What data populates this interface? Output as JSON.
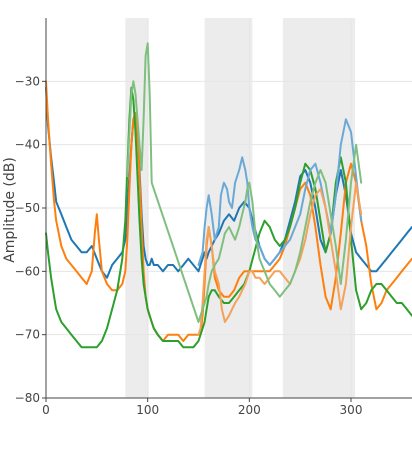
{
  "chart_data": {
    "type": "line",
    "title": "",
    "xlabel": "",
    "ylabel": "Amplitude (dB)",
    "xlim": [
      0,
      360
    ],
    "ylim": [
      -80,
      -20
    ],
    "xticks": [
      0,
      100,
      200,
      300
    ],
    "yticks": [
      -80,
      -70,
      -60,
      -50,
      -40,
      -30
    ],
    "grid": true,
    "legend": "none",
    "shaded_bands": [
      {
        "x0": 78,
        "x1": 101,
        "color": "#ececec"
      },
      {
        "x0": 156,
        "x1": 203,
        "color": "#ececec"
      },
      {
        "x0": 233,
        "x1": 304,
        "color": "#ececec"
      }
    ],
    "series": [
      {
        "color": "#1f77b4",
        "x": [
          0,
          2,
          5,
          8,
          10,
          15,
          20,
          25,
          30,
          35,
          40,
          45,
          50,
          55,
          60,
          65,
          70,
          75,
          78,
          80,
          82,
          84,
          86,
          88,
          90,
          92,
          94,
          96,
          98,
          100,
          102,
          104,
          106,
          110,
          115,
          120,
          125,
          130,
          135,
          140,
          145,
          150,
          152,
          154,
          156,
          158,
          160,
          163,
          166,
          170,
          175,
          180,
          185,
          190,
          195,
          200,
          205,
          210,
          215,
          220,
          225,
          230,
          235,
          240,
          245,
          250,
          255,
          260,
          265,
          270,
          275,
          280,
          285,
          290,
          295,
          300,
          305,
          310,
          315,
          320,
          325,
          330,
          335,
          340,
          345,
          350,
          355,
          360
        ],
        "y": [
          -31,
          -37,
          -42,
          -46,
          -49,
          -51,
          -53,
          -55,
          -56,
          -57,
          -57,
          -56,
          -58,
          -60,
          -61,
          -59,
          -58,
          -57,
          -55,
          -50,
          -45,
          -40,
          -36,
          -35,
          -38,
          -44,
          -51,
          -56,
          -58,
          -59,
          -59,
          -58,
          -59,
          -59,
          -60,
          -59,
          -59,
          -60,
          -59,
          -58,
          -59,
          -60,
          -59,
          -58,
          -57,
          -58,
          -57,
          -56,
          -55,
          -54,
          -52,
          -51,
          -52,
          -50,
          -49,
          -50,
          -53,
          -56,
          -58,
          -59,
          -58,
          -57,
          -55,
          -52,
          -49,
          -45,
          -44,
          -46,
          -50,
          -55,
          -57,
          -54,
          -48,
          -44,
          -48,
          -54,
          -57,
          -58,
          -59,
          -60,
          -60,
          -59,
          -58,
          -57,
          -56,
          -55,
          -54,
          -53
        ]
      },
      {
        "color": "#ff7f0e",
        "x": [
          0,
          2,
          5,
          8,
          10,
          15,
          20,
          25,
          30,
          35,
          40,
          45,
          48,
          50,
          52,
          55,
          60,
          65,
          70,
          75,
          78,
          80,
          82,
          84,
          86,
          88,
          90,
          92,
          94,
          96,
          98,
          100,
          102,
          104,
          106,
          110,
          115,
          120,
          125,
          130,
          135,
          140,
          145,
          150,
          152,
          154,
          156,
          158,
          160,
          163,
          166,
          170,
          175,
          180,
          185,
          190,
          195,
          200,
          205,
          210,
          215,
          220,
          225,
          230,
          235,
          240,
          245,
          250,
          255,
          260,
          265,
          270,
          275,
          280,
          285,
          290,
          295,
          300,
          305,
          310,
          315,
          320,
          325,
          330,
          335,
          340,
          345,
          350,
          355,
          360
        ],
        "y": [
          -30,
          -36,
          -43,
          -49,
          -52,
          -56,
          -58,
          -59,
          -60,
          -61,
          -62,
          -60,
          -54,
          -51,
          -55,
          -60,
          -62,
          -63,
          -63,
          -62,
          -60,
          -55,
          -47,
          -40,
          -36,
          -35,
          -38,
          -45,
          -53,
          -60,
          -64,
          -66,
          -67,
          -68,
          -69,
          -70,
          -71,
          -70,
          -70,
          -70,
          -71,
          -70,
          -70,
          -70,
          -70,
          -67,
          -62,
          -56,
          -53,
          -56,
          -61,
          -63,
          -64,
          -64,
          -63,
          -61,
          -60,
          -60,
          -60,
          -60,
          -60,
          -60,
          -59,
          -58,
          -56,
          -53,
          -50,
          -47,
          -46,
          -48,
          -53,
          -59,
          -64,
          -66,
          -61,
          -54,
          -46,
          -43,
          -46,
          -52,
          -56,
          -62,
          -66,
          -65,
          -63,
          -62,
          -61,
          -60,
          -59,
          -58
        ]
      },
      {
        "color": "#2ca02c",
        "x": [
          0,
          2,
          5,
          8,
          10,
          15,
          20,
          25,
          30,
          35,
          40,
          45,
          50,
          55,
          60,
          65,
          70,
          75,
          78,
          80,
          82,
          84,
          86,
          88,
          90,
          92,
          94,
          96,
          98,
          100,
          102,
          104,
          106,
          110,
          115,
          120,
          125,
          130,
          135,
          140,
          145,
          150,
          152,
          154,
          156,
          158,
          160,
          163,
          166,
          170,
          175,
          180,
          185,
          190,
          195,
          200,
          205,
          210,
          215,
          220,
          225,
          230,
          235,
          240,
          245,
          250,
          255,
          260,
          265,
          270,
          275,
          280,
          285,
          290,
          295,
          300,
          305,
          310,
          315,
          320,
          325,
          330,
          335,
          340,
          345,
          350,
          355,
          360
        ],
        "y": [
          -54,
          -57,
          -61,
          -64,
          -66,
          -68,
          -69,
          -70,
          -71,
          -72,
          -72,
          -72,
          -72,
          -71,
          -69,
          -66,
          -63,
          -58,
          -52,
          -44,
          -36,
          -31,
          -33,
          -38,
          -45,
          -52,
          -58,
          -62,
          -64,
          -66,
          -67,
          -68,
          -69,
          -70,
          -71,
          -71,
          -71,
          -71,
          -72,
          -72,
          -72,
          -71,
          -70,
          -69,
          -68,
          -66,
          -64,
          -63,
          -63,
          -64,
          -65,
          -65,
          -64,
          -63,
          -62,
          -60,
          -57,
          -54,
          -52,
          -53,
          -55,
          -56,
          -55,
          -53,
          -50,
          -46,
          -43,
          -44,
          -47,
          -52,
          -57,
          -54,
          -46,
          -42,
          -46,
          -55,
          -63,
          -66,
          -65,
          -63,
          -62,
          -62,
          -63,
          -64,
          -65,
          -65,
          -66,
          -67
        ]
      },
      {
        "color": "#6aa9d6",
        "x": [
          150,
          152,
          154,
          156,
          158,
          160,
          163,
          166,
          170,
          172,
          175,
          178,
          180,
          183,
          186,
          190,
          193,
          196,
          198,
          200,
          203,
          206,
          210,
          215,
          220,
          225,
          230,
          235,
          240,
          245,
          250,
          255,
          260,
          265,
          270,
          275,
          280,
          285,
          290,
          295,
          300,
          305,
          310
        ],
        "y": [
          -59,
          -58,
          -57,
          -53,
          -50,
          -48,
          -51,
          -55,
          -53,
          -48,
          -46,
          -47,
          -49,
          -50,
          -46,
          -44,
          -42,
          -44,
          -46,
          -50,
          -53,
          -55,
          -56,
          -58,
          -59,
          -58,
          -57,
          -56,
          -55,
          -53,
          -51,
          -47,
          -44,
          -43,
          -46,
          -50,
          -54,
          -48,
          -40,
          -36,
          -38,
          -45,
          -52
        ]
      },
      {
        "color": "#f4a15a",
        "x": [
          150,
          152,
          154,
          156,
          158,
          160,
          163,
          166,
          170,
          173,
          176,
          180,
          183,
          186,
          190,
          193,
          196,
          198,
          200,
          203,
          206,
          210,
          215,
          220,
          225,
          230,
          235,
          240,
          245,
          250,
          255,
          260,
          265,
          270,
          275,
          280,
          285,
          290,
          295,
          300,
          305,
          310
        ],
        "y": [
          -70,
          -69,
          -65,
          -60,
          -55,
          -53,
          -56,
          -60,
          -62,
          -66,
          -68,
          -67,
          -66,
          -65,
          -64,
          -63,
          -62,
          -61,
          -60,
          -60,
          -61,
          -61,
          -62,
          -61,
          -60,
          -60,
          -61,
          -62,
          -60,
          -58,
          -55,
          -51,
          -48,
          -47,
          -50,
          -55,
          -60,
          -66,
          -62,
          -53,
          -46,
          -51
        ]
      },
      {
        "color": "#7fbf7f",
        "x": [
          80,
          82,
          84,
          86,
          88,
          90,
          92,
          94,
          96,
          98,
          100,
          102,
          104,
          150,
          152,
          154,
          156,
          158,
          160,
          163,
          166,
          170,
          173,
          176,
          180,
          183,
          186,
          190,
          193,
          196,
          198,
          200,
          203,
          206,
          210,
          215,
          220,
          225,
          230,
          235,
          240,
          245,
          250,
          255,
          260,
          265,
          270,
          275,
          280,
          285,
          290,
          295,
          300,
          305,
          310
        ],
        "y": [
          -45,
          -38,
          -32,
          -30,
          -32,
          -36,
          -40,
          -44,
          -36,
          -26,
          -24,
          -32,
          -46,
          -68,
          -67,
          -66,
          -65,
          -64,
          -62,
          -60,
          -59,
          -58,
          -56,
          -54,
          -53,
          -54,
          -55,
          -53,
          -51,
          -49,
          -47,
          -46,
          -49,
          -54,
          -58,
          -60,
          -62,
          -63,
          -64,
          -63,
          -62,
          -60,
          -57,
          -53,
          -49,
          -46,
          -44,
          -46,
          -51,
          -56,
          -62,
          -55,
          -46,
          -40,
          -46
        ]
      }
    ]
  }
}
